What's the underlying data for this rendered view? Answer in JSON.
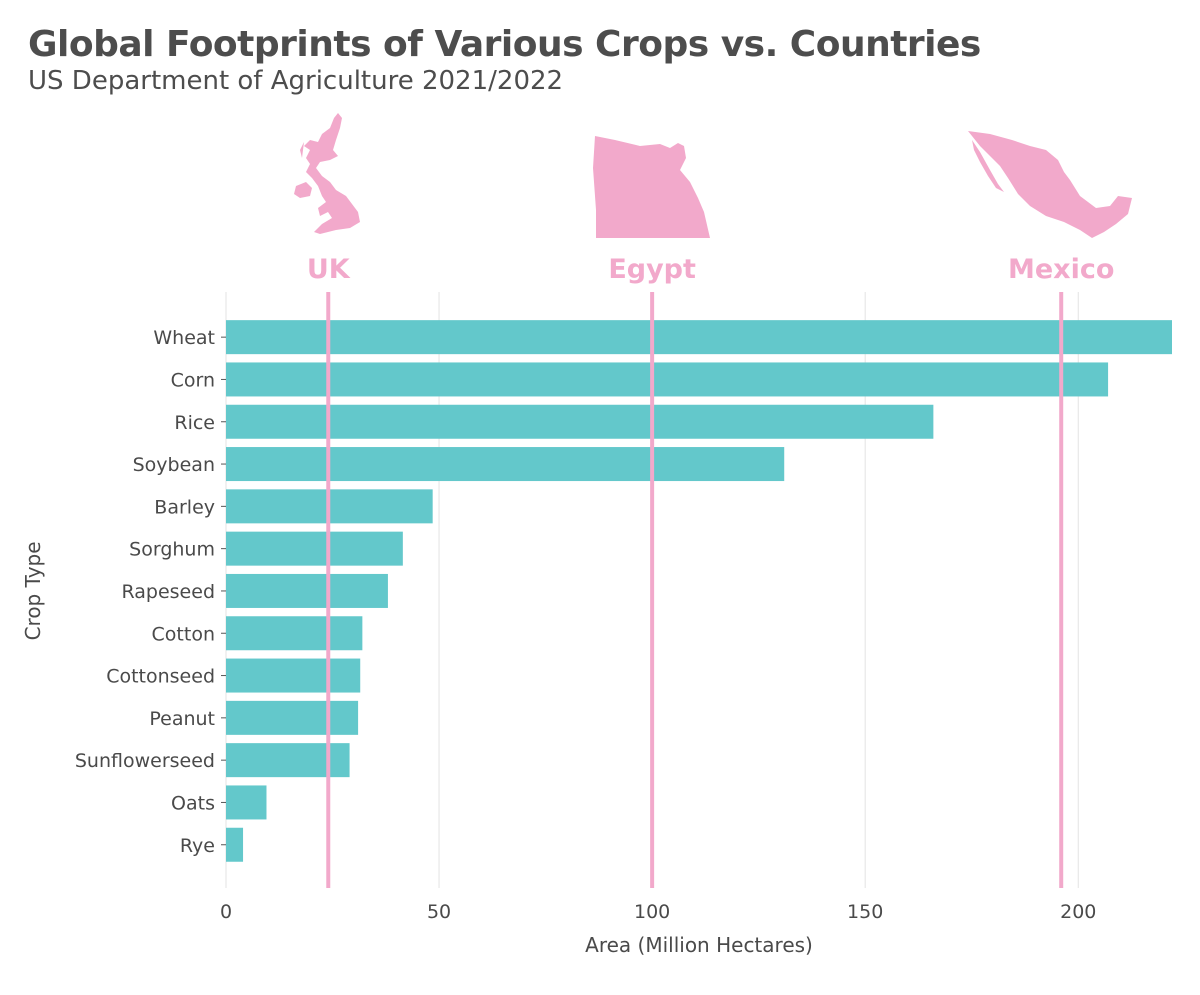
{
  "title": "Global Footprints of Various Crops vs. Countries",
  "subtitle": "US Department of Agriculture 2021/2022",
  "colors": {
    "bar": "#63c8cb",
    "country": "#f2a9cb",
    "grid": "#e3e3e3",
    "text": "#4a4a4a"
  },
  "chart_data": {
    "type": "bar",
    "orientation": "horizontal",
    "categories": [
      "Wheat",
      "Corn",
      "Rice",
      "Soybean",
      "Barley",
      "Sorghum",
      "Rapeseed",
      "Cotton",
      "Cottonseed",
      "Peanut",
      "Sunflowerseed",
      "Oats",
      "Rye"
    ],
    "values": [
      222,
      207,
      166,
      131,
      48.5,
      41.5,
      38,
      32,
      31.5,
      31,
      29,
      9.5,
      4
    ],
    "xlabel": "Area (Million Hectares)",
    "ylabel": "Crop Type",
    "xlim": [
      0,
      222
    ],
    "xticks": [
      0,
      50,
      100,
      150,
      200
    ],
    "grid": "vertical",
    "reference_lines": [
      {
        "name": "UK",
        "value": 24,
        "icon": "uk-map-icon"
      },
      {
        "name": "Egypt",
        "value": 100,
        "icon": "egypt-map-icon"
      },
      {
        "name": "Mexico",
        "value": 196,
        "icon": "mexico-map-icon"
      }
    ]
  }
}
